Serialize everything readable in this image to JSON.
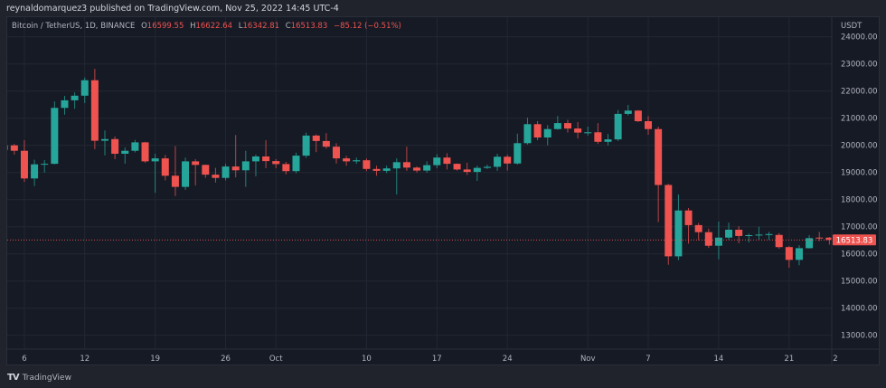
{
  "header": {
    "published": "reynaldomarquez3 published on TradingView.com, Nov 25, 2022 14:45 UTC-4"
  },
  "legend": {
    "symbol": "Bitcoin / TetherUS, 1D, BINANCE",
    "o_label": "O",
    "o": "16599.55",
    "h_label": "H",
    "h": "16622.64",
    "l_label": "L",
    "l": "16342.81",
    "c_label": "C",
    "c": "16513.83",
    "change": "−85.12 (−0.51%)"
  },
  "footer": {
    "brand": "TradingView"
  },
  "colors": {
    "up": "#26a69a",
    "down": "#ef5350",
    "background": "#161a25",
    "grid": "#232733",
    "text": "#b2b5be"
  },
  "chart_data": {
    "type": "candlestick",
    "symbol": "Bitcoin / TetherUS",
    "interval": "1D",
    "y_unit": "USDT",
    "ylim": [
      12700,
      24400
    ],
    "y_ticks": [
      "24000.00",
      "23000.00",
      "22000.00",
      "21000.00",
      "20000.00",
      "19000.00",
      "18000.00",
      "17000.00",
      "16000.00",
      "15000.00",
      "14000.00",
      "13000.00"
    ],
    "x_ticks": [
      {
        "label": "6",
        "date": "2022-09-06"
      },
      {
        "label": "12",
        "date": "2022-09-12"
      },
      {
        "label": "19",
        "date": "2022-09-19"
      },
      {
        "label": "26",
        "date": "2022-09-26"
      },
      {
        "label": "Oct",
        "date": "2022-10-01"
      },
      {
        "label": "10",
        "date": "2022-10-10"
      },
      {
        "label": "17",
        "date": "2022-10-17"
      },
      {
        "label": "24",
        "date": "2022-10-24"
      },
      {
        "label": "Nov",
        "date": "2022-11-01"
      },
      {
        "label": "7",
        "date": "2022-11-07"
      },
      {
        "label": "14",
        "date": "2022-11-14"
      },
      {
        "label": "21",
        "date": "2022-11-21"
      },
      {
        "label": "2",
        "date": "2022-11-28"
      }
    ],
    "grid": true,
    "last_price": 16513.83,
    "last_price_label": "16513.83",
    "columns": [
      "date",
      "open",
      "high",
      "low",
      "close"
    ],
    "candles": [
      [
        "2022-09-04",
        19830,
        20020,
        19800,
        20000
      ],
      [
        "2022-09-05",
        20000,
        20050,
        19660,
        19800
      ],
      [
        "2022-09-06",
        19800,
        20190,
        18650,
        18780
      ],
      [
        "2022-09-07",
        18780,
        19470,
        18500,
        19300
      ],
      [
        "2022-09-08",
        19300,
        19460,
        19000,
        19320
      ],
      [
        "2022-09-09",
        19320,
        21620,
        19300,
        21380
      ],
      [
        "2022-09-10",
        21380,
        21820,
        21130,
        21660
      ],
      [
        "2022-09-11",
        21660,
        21950,
        21350,
        21830
      ],
      [
        "2022-09-12",
        21830,
        22500,
        21560,
        22400
      ],
      [
        "2022-09-13",
        22400,
        22820,
        19860,
        20170
      ],
      [
        "2022-09-14",
        20170,
        20550,
        19630,
        20230
      ],
      [
        "2022-09-15",
        20230,
        20330,
        19490,
        19690
      ],
      [
        "2022-09-16",
        19690,
        19920,
        19320,
        19800
      ],
      [
        "2022-09-17",
        19800,
        20200,
        19740,
        20110
      ],
      [
        "2022-09-18",
        20110,
        20130,
        19360,
        19410
      ],
      [
        "2022-09-19",
        19410,
        19690,
        18250,
        19520
      ],
      [
        "2022-09-20",
        19520,
        19650,
        18710,
        18880
      ],
      [
        "2022-09-21",
        18880,
        19970,
        18130,
        18470
      ],
      [
        "2022-09-22",
        18470,
        19550,
        18360,
        19410
      ],
      [
        "2022-09-23",
        19410,
        19490,
        18520,
        19280
      ],
      [
        "2022-09-24",
        19280,
        19290,
        18800,
        18920
      ],
      [
        "2022-09-25",
        18920,
        19170,
        18630,
        18800
      ],
      [
        "2022-09-26",
        18800,
        19320,
        18710,
        19220
      ],
      [
        "2022-09-27",
        19220,
        20380,
        18820,
        19080
      ],
      [
        "2022-09-28",
        19080,
        19800,
        18470,
        19410
      ],
      [
        "2022-09-29",
        19410,
        19660,
        18860,
        19590
      ],
      [
        "2022-09-30",
        19590,
        20190,
        19160,
        19420
      ],
      [
        "2022-10-01",
        19420,
        19490,
        19160,
        19310
      ],
      [
        "2022-10-02",
        19310,
        19390,
        18930,
        19050
      ],
      [
        "2022-10-03",
        19050,
        19730,
        18970,
        19620
      ],
      [
        "2022-10-04",
        19620,
        20470,
        19540,
        20360
      ],
      [
        "2022-10-05",
        20360,
        20400,
        19750,
        20160
      ],
      [
        "2022-10-06",
        20160,
        20450,
        19880,
        19950
      ],
      [
        "2022-10-07",
        19950,
        20080,
        19330,
        19520
      ],
      [
        "2022-10-08",
        19520,
        19610,
        19250,
        19410
      ],
      [
        "2022-10-09",
        19410,
        19550,
        19320,
        19450
      ],
      [
        "2022-10-10",
        19450,
        19520,
        19050,
        19130
      ],
      [
        "2022-10-11",
        19130,
        19250,
        18880,
        19060
      ],
      [
        "2022-10-12",
        19060,
        19250,
        18980,
        19150
      ],
      [
        "2022-10-13",
        19150,
        19520,
        18190,
        19380
      ],
      [
        "2022-10-14",
        19380,
        19950,
        19060,
        19180
      ],
      [
        "2022-10-15",
        19180,
        19220,
        19000,
        19070
      ],
      [
        "2022-10-16",
        19070,
        19410,
        18990,
        19270
      ],
      [
        "2022-10-17",
        19270,
        19670,
        19160,
        19550
      ],
      [
        "2022-10-18",
        19550,
        19710,
        19110,
        19320
      ],
      [
        "2022-10-19",
        19320,
        19330,
        19070,
        19110
      ],
      [
        "2022-10-20",
        19110,
        19360,
        18910,
        19020
      ],
      [
        "2022-10-21",
        19020,
        19250,
        18690,
        19170
      ],
      [
        "2022-10-22",
        19170,
        19290,
        19130,
        19210
      ],
      [
        "2022-10-23",
        19210,
        19690,
        19060,
        19580
      ],
      [
        "2022-10-24",
        19580,
        19660,
        19070,
        19330
      ],
      [
        "2022-10-25",
        19330,
        20430,
        19290,
        20080
      ],
      [
        "2022-10-26",
        20080,
        21020,
        20030,
        20780
      ],
      [
        "2022-10-27",
        20780,
        20890,
        20190,
        20290
      ],
      [
        "2022-10-28",
        20290,
        20750,
        20000,
        20600
      ],
      [
        "2022-10-29",
        20600,
        21080,
        20580,
        20820
      ],
      [
        "2022-10-30",
        20820,
        20940,
        20470,
        20620
      ],
      [
        "2022-10-31",
        20620,
        20860,
        20250,
        20470
      ],
      [
        "2022-11-01",
        20470,
        20690,
        20360,
        20480
      ],
      [
        "2022-11-02",
        20480,
        20820,
        20050,
        20130
      ],
      [
        "2022-11-03",
        20130,
        20420,
        20000,
        20220
      ],
      [
        "2022-11-04",
        20220,
        21300,
        20160,
        21160
      ],
      [
        "2022-11-05",
        21160,
        21490,
        21100,
        21280
      ],
      [
        "2022-11-06",
        21280,
        21300,
        20860,
        20890
      ],
      [
        "2022-11-07",
        20890,
        21080,
        20390,
        20600
      ],
      [
        "2022-11-08",
        20600,
        20690,
        17170,
        18540
      ],
      [
        "2022-11-09",
        18540,
        18580,
        15600,
        15910
      ],
      [
        "2022-11-10",
        15910,
        18190,
        15770,
        17600
      ],
      [
        "2022-11-11",
        17600,
        17690,
        16380,
        17060
      ],
      [
        "2022-11-12",
        17060,
        17140,
        16500,
        16800
      ],
      [
        "2022-11-13",
        16800,
        16930,
        16220,
        16300
      ],
      [
        "2022-11-14",
        16300,
        17190,
        15800,
        16600
      ],
      [
        "2022-11-15",
        16600,
        17150,
        16520,
        16890
      ],
      [
        "2022-11-16",
        16890,
        17020,
        16390,
        16660
      ],
      [
        "2022-11-17",
        16660,
        16750,
        16420,
        16690
      ],
      [
        "2022-11-18",
        16690,
        17000,
        16520,
        16710
      ],
      [
        "2022-11-19",
        16710,
        16810,
        16520,
        16730
      ],
      [
        "2022-11-20",
        16700,
        16770,
        16190,
        16250
      ],
      [
        "2022-11-21",
        16250,
        16290,
        15490,
        15780
      ],
      [
        "2022-11-22",
        15780,
        16320,
        15580,
        16210
      ],
      [
        "2022-11-23",
        16210,
        16690,
        16200,
        16580
      ],
      [
        "2022-11-24",
        16600,
        16810,
        16470,
        16570
      ],
      [
        "2022-11-25",
        16599.55,
        16622.64,
        16342.81,
        16513.83
      ]
    ]
  }
}
